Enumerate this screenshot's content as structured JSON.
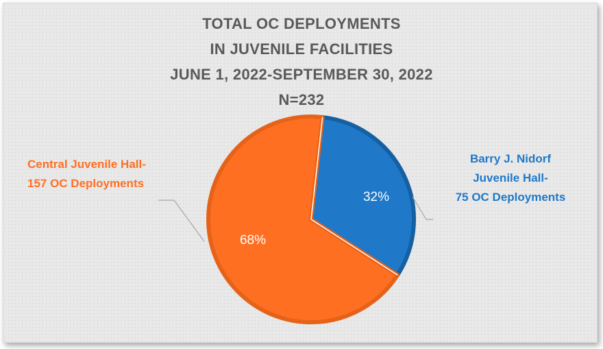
{
  "chart_data": {
    "type": "pie",
    "title_lines": [
      "TOTAL OC DEPLOYMENTS",
      "IN JUVENILE FACILITIES",
      "JUNE 1, 2022-SEPTEMBER 30, 2022",
      "N=232"
    ],
    "slices": [
      {
        "name": "Central Juvenile Hall",
        "label_lines": [
          "Central Juvenile Hall-",
          "157 OC Deployments"
        ],
        "value": 157,
        "percent_label": "68%",
        "color": "#ff6f22",
        "edge_color": "#e56319"
      },
      {
        "name": "Barry J. Nidorf Juvenile Hall",
        "label_lines": [
          "Barry J. Nidorf",
          "Juvenile Hall-",
          "75 OC Deployments"
        ],
        "value": 75,
        "percent_label": "32%",
        "color": "#1f78c8",
        "edge_color": "#155fa3"
      }
    ],
    "total": 232,
    "legend": "none"
  }
}
